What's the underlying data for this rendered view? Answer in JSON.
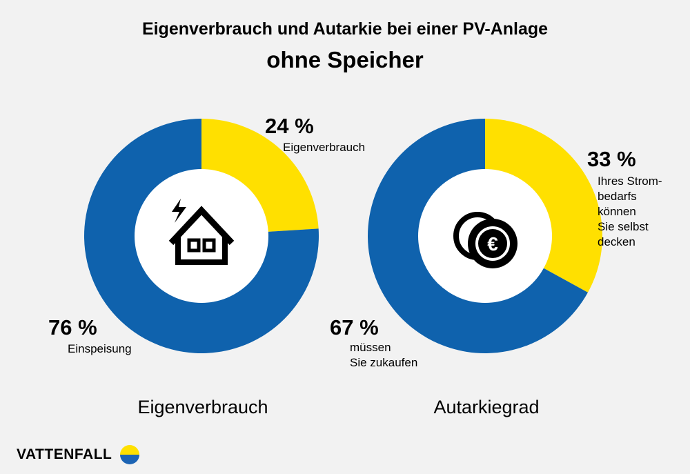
{
  "title_line1": "Eigenverbrauch und Autarkie bei einer PV-Anlage",
  "title_line2": "ohne Speicher",
  "colors": {
    "blue": "#0f62ad",
    "yellow": "#ffe000",
    "background": "#f2f2f2"
  },
  "chart_data": [
    {
      "type": "pie",
      "title": "Eigenverbrauch",
      "center_icon": "house-lightning-icon",
      "slices": [
        {
          "value": 24,
          "label": "24 %",
          "description": "Eigenverbrauch",
          "color": "#ffe000"
        },
        {
          "value": 76,
          "label": "76 %",
          "description": "Einspeisung",
          "color": "#0f62ad"
        }
      ]
    },
    {
      "type": "pie",
      "title": "Autarkiegrad",
      "center_icon": "euro-coins-icon",
      "slices": [
        {
          "value": 33,
          "label": "33 %",
          "description_lines": [
            "Ihres Strom-",
            "bedarfs",
            "können",
            "Sie selbst",
            "decken"
          ],
          "color": "#ffe000"
        },
        {
          "value": 67,
          "label": "67 %",
          "description_lines": [
            "müssen",
            "Sie zukaufen"
          ],
          "color": "#0f62ad"
        }
      ]
    }
  ],
  "brand": {
    "name": "VATTENFALL"
  }
}
